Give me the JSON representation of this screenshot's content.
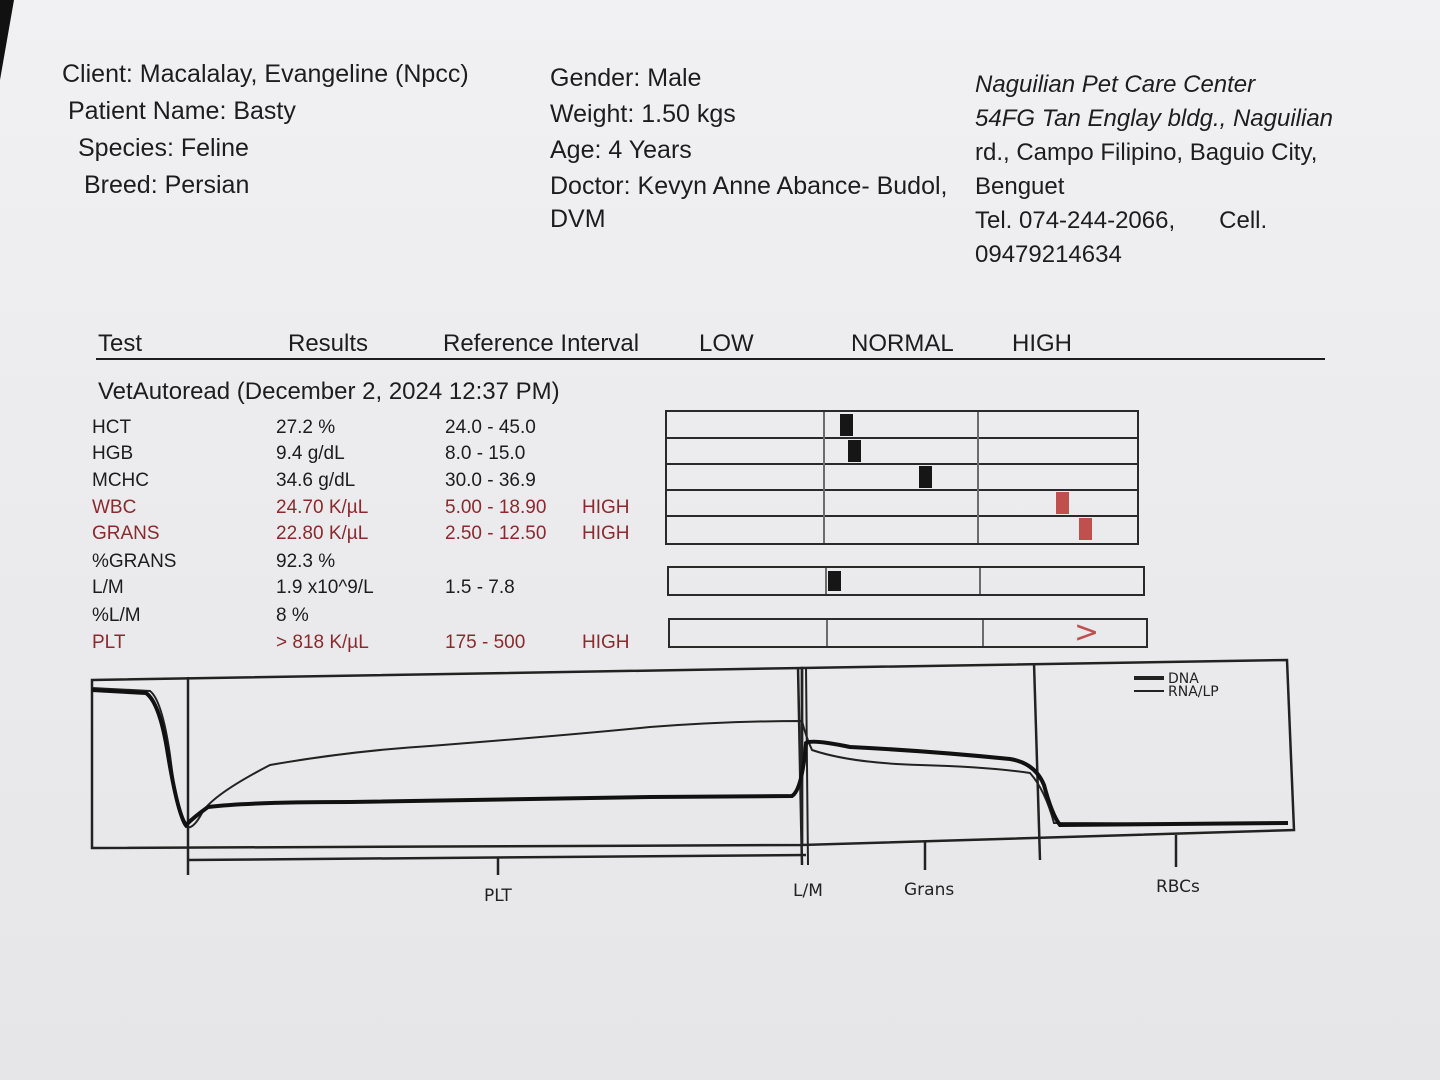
{
  "client": {
    "client_line": "Client: Macalalay, Evangeline (Npcc)",
    "patient_line": "Patient Name: Basty",
    "species_line": "Species: Feline",
    "breed_line": "Breed: Persian"
  },
  "patient": {
    "gender_line": "Gender: Male",
    "weight_line": "Weight: 1.50 kgs",
    "age_line": "Age: 4 Years",
    "doctor_line": "Doctor: Kevyn Anne Abance- Budol,",
    "doctor_line2": "DVM"
  },
  "clinic": {
    "name": "Naguilian Pet Care Center",
    "address1": "54FG Tan Englay bldg., Naguilian",
    "address2": "rd., Campo Filipino, Baguio City,",
    "address3": "Benguet",
    "tel": "Tel. 074-244-2066,",
    "cell_label": "Cell.",
    "cell": "09479214634"
  },
  "table": {
    "headers": {
      "test": "Test",
      "results": "Results",
      "reference": "Reference Interval",
      "low": "LOW",
      "normal": "NORMAL",
      "high": "HIGH"
    },
    "run_title": "VetAutoread (December 2, 2024 12:37 PM)",
    "rows": [
      {
        "test": "HCT",
        "result": "27.2 %",
        "reference": "24.0 - 45.0",
        "flag": ""
      },
      {
        "test": "HGB",
        "result": "9.4 g/dL",
        "reference": "8.0 - 15.0",
        "flag": ""
      },
      {
        "test": "MCHC",
        "result": "34.6 g/dL",
        "reference": "30.0 - 36.9",
        "flag": ""
      },
      {
        "test": "WBC",
        "result": "24.70 K/µL",
        "reference": "5.00 - 18.90",
        "flag": "HIGH"
      },
      {
        "test": "GRANS",
        "result": "22.80 K/µL",
        "reference": "2.50 - 12.50",
        "flag": "HIGH"
      },
      {
        "test": "%GRANS",
        "result": "92.3 %",
        "reference": "",
        "flag": ""
      },
      {
        "test": "L/M",
        "result": "1.9 x10^9/L",
        "reference": "1.5 - 7.8",
        "flag": ""
      },
      {
        "test": "%L/M",
        "result": "8 %",
        "reference": "",
        "flag": ""
      },
      {
        "test": "PLT",
        "result": "> 818 K/µL",
        "reference": "175 - 500",
        "flag": "HIGH"
      }
    ],
    "gauge_symbol": ">"
  },
  "histogram": {
    "legend": [
      "DNA",
      "RNA/LP"
    ],
    "labels": [
      "PLT",
      "L/M",
      "Grans",
      "RBCs"
    ]
  },
  "colors": {
    "high_text": "#8a2a2e",
    "high_marker": "#c0504d",
    "normal_marker": "#161616",
    "paper": "#ececee"
  }
}
